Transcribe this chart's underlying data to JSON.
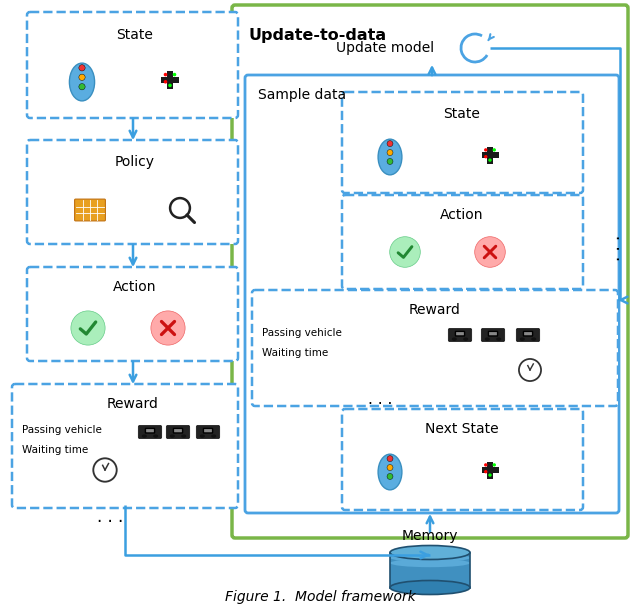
{
  "figsize": [
    6.4,
    6.11
  ],
  "dpi": 100,
  "bg_color": "#ffffff",
  "dashed_blue": "#4ba3e3",
  "solid_green": "#7ab648",
  "arrow_blue": "#3b9fe0",
  "title_caption": "Figure 1.  Model framework",
  "update_to_data": "Update-to-data",
  "update_model": "Update model",
  "sample_data": "Sample data",
  "memory": "Memory"
}
